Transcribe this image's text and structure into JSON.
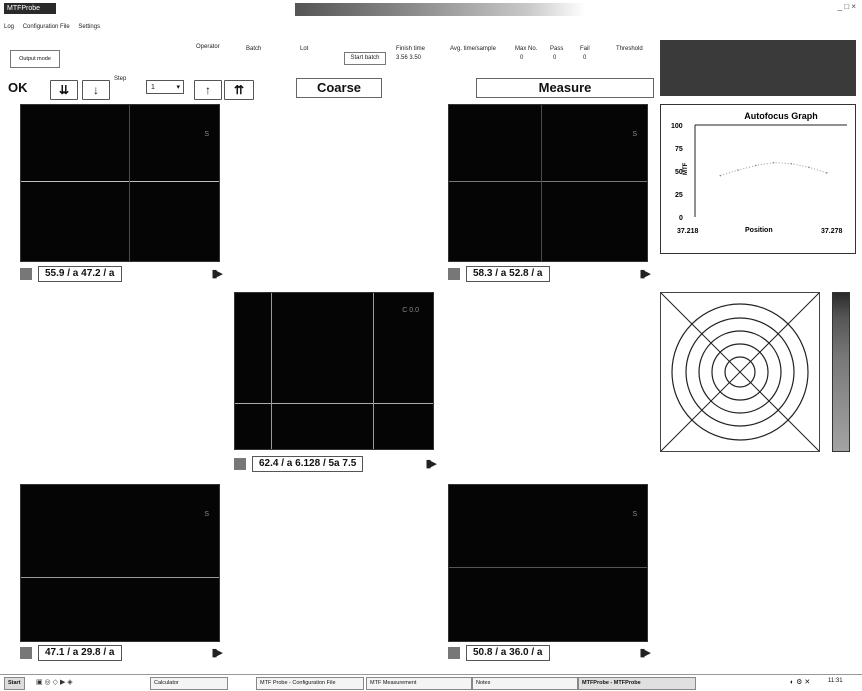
{
  "window": {
    "title": "MTFProbe",
    "controls": "_ □ ×"
  },
  "menu": [
    "Log",
    "Configuration File",
    "Settings"
  ],
  "status": {
    "output_mode_label": "Output mode",
    "operator_label": "Operator",
    "batch_label": "Batch",
    "lot_label": "Lot",
    "start_batch_label": "Start batch",
    "finish_time_label": "Finish time",
    "finish_time_value": "3.56 3.50",
    "avg_time_label": "Avg. time/sample",
    "max_no_label": "Max No.",
    "max_no_value": "0",
    "pass_label": "Pass",
    "pass_value": "0",
    "fail_label": "Fail",
    "fail_value": "0",
    "threshold_label": "Threshold"
  },
  "toolbar": {
    "ok_label": "OK",
    "down_fast_label": "⇊",
    "down_label": "↓",
    "step_label": "Step",
    "step_value": "1",
    "up_label": "↑",
    "up_fast_label": "⇈",
    "coarse_label": "Coarse",
    "measure_label": "Measure"
  },
  "cameras": [
    {
      "id": "top-left",
      "readout": "55.9 / a   47.2 / a",
      "label": "S"
    },
    {
      "id": "top-right",
      "readout": "58.3 / a   52.8 / a",
      "label": "S"
    },
    {
      "id": "center",
      "readout": "62.4 / a    6.128 / 5a  7.5",
      "label": "C  0.0"
    },
    {
      "id": "bottom-left",
      "readout": "47.1 / a   29.8 / a",
      "label": "S"
    },
    {
      "id": "bottom-right",
      "readout": "50.8 / a   36.0 / a",
      "label": "S"
    }
  ],
  "af_graph": {
    "title": "Autofocus Graph",
    "ylabel": "MTF",
    "xlabel": "Position",
    "x_min_label": "37.218",
    "x_max_label": "37.278",
    "yticks": [
      "100",
      "75",
      "50",
      "25",
      "0"
    ]
  },
  "chart_data": {
    "type": "line",
    "title": "Autofocus Graph",
    "xlabel": "Position",
    "ylabel": "MTF",
    "ylim": [
      0,
      100
    ],
    "xlim": [
      37.218,
      37.278
    ],
    "x": [
      37.228,
      37.235,
      37.242,
      37.249,
      37.256,
      37.263,
      37.27
    ],
    "series": [
      {
        "values": [
          45,
          51,
          56,
          59,
          58,
          54,
          48
        ]
      }
    ]
  },
  "taskbar": {
    "start_label": "Start",
    "items": [
      "Calculator",
      "MTF Probe - Configuration File",
      "MTF Measurement",
      "Notes",
      "MTFProbe - MTFProbe"
    ],
    "clock": "11:31"
  }
}
